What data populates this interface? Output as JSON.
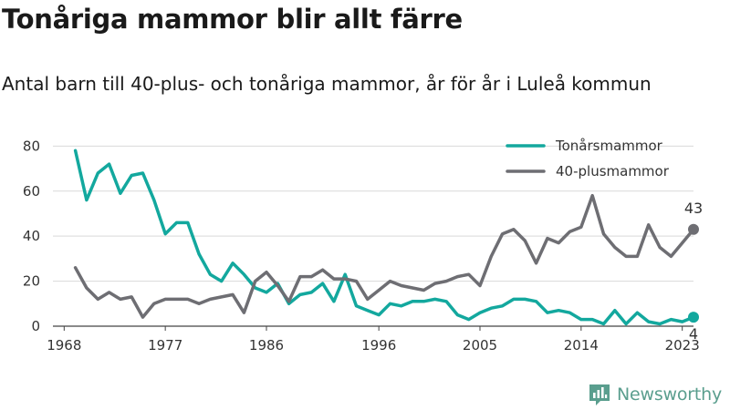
{
  "title": "Tonåriga mammor blir allt färre",
  "subtitle": "Antal barn till 40-plus- och tonåriga mammor, år för år i Luleå kommun",
  "brand": {
    "name": "Newsworthy",
    "color": "#5a9e8e",
    "logo_icon": "bar-chart-icon"
  },
  "chart_data": {
    "type": "line",
    "x_ticks": [
      "1968",
      "1977",
      "1986",
      "1996",
      "2005",
      "2014",
      "2023"
    ],
    "y_ticks": [
      "0",
      "20",
      "40",
      "60",
      "80"
    ],
    "ylim": [
      0,
      85
    ],
    "xlim": [
      1967,
      2024
    ],
    "grid": "horizontal",
    "legend_position": "top-right",
    "end_labels": [
      {
        "series": "40-plusmammor",
        "text": "43"
      },
      {
        "series": "Tonårsmammor",
        "text": "4"
      }
    ],
    "x": [
      1969,
      1970,
      1971,
      1972,
      1973,
      1974,
      1975,
      1976,
      1977,
      1978,
      1979,
      1980,
      1981,
      1982,
      1983,
      1984,
      1985,
      1986,
      1987,
      1988,
      1989,
      1990,
      1991,
      1992,
      1993,
      1994,
      1995,
      1996,
      1997,
      1998,
      1999,
      2000,
      2001,
      2002,
      2003,
      2004,
      2005,
      2006,
      2007,
      2008,
      2009,
      2010,
      2011,
      2012,
      2013,
      2014,
      2015,
      2016,
      2017,
      2018,
      2019,
      2020,
      2021,
      2022,
      2023,
      2024
    ],
    "series": [
      {
        "name": "Tonårsmammor",
        "color": "#13a89e",
        "values": [
          78,
          56,
          68,
          72,
          59,
          67,
          68,
          56,
          41,
          46,
          46,
          32,
          23,
          20,
          28,
          23,
          17,
          15,
          19,
          10,
          14,
          15,
          19,
          11,
          23,
          9,
          7,
          5,
          10,
          9,
          11,
          11,
          12,
          11,
          5,
          3,
          6,
          8,
          9,
          12,
          12,
          11,
          6,
          7,
          6,
          3,
          3,
          1,
          7,
          1,
          6,
          2,
          1,
          3,
          2,
          4
        ]
      },
      {
        "name": "40-plusmammor",
        "color": "#6e6e73",
        "values": [
          26,
          17,
          12,
          15,
          12,
          13,
          4,
          10,
          12,
          12,
          12,
          10,
          12,
          13,
          14,
          6,
          20,
          24,
          18,
          11,
          22,
          22,
          25,
          21,
          21,
          20,
          12,
          16,
          20,
          18,
          17,
          16,
          19,
          20,
          22,
          23,
          18,
          31,
          41,
          43,
          38,
          28,
          39,
          37,
          42,
          44,
          58,
          41,
          35,
          31,
          31,
          45,
          35,
          31,
          37,
          43
        ]
      }
    ]
  }
}
